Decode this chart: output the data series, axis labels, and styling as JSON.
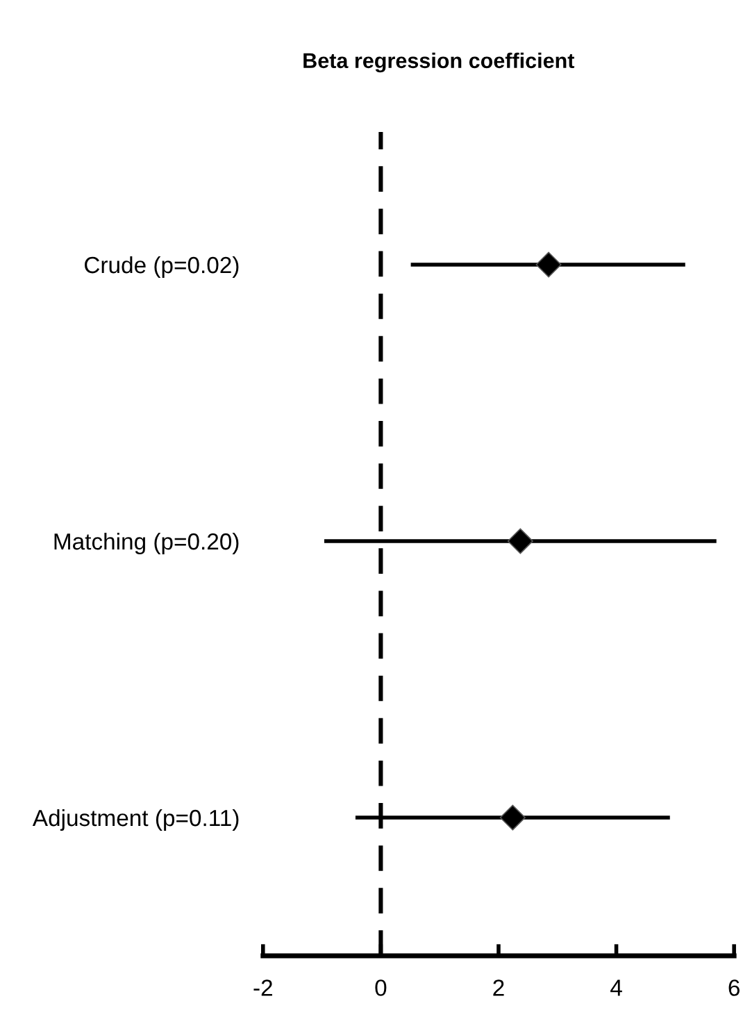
{
  "chart_data": {
    "type": "scatter",
    "orientation": "horizontal",
    "title": "Beta regression coefficient",
    "categories": [
      "Crude (p=0.02)",
      "Matching (p=0.20)",
      "Adjustment (p=0.11)"
    ],
    "values": [
      2.85,
      2.37,
      2.24
    ],
    "errors": [
      [
        0.51,
        5.17
      ],
      [
        -0.96,
        5.7
      ],
      [
        -0.43,
        4.91
      ]
    ],
    "color": "#000000",
    "marker": "diamond",
    "xlim": [
      -2,
      6
    ],
    "xticks": [
      -2,
      0,
      2,
      4,
      6
    ],
    "ref_lines": [
      {
        "axis": "x",
        "value": 0,
        "line_style": "dashed",
        "color": "#000000"
      }
    ],
    "grid": false,
    "tick_labels": "xy"
  }
}
